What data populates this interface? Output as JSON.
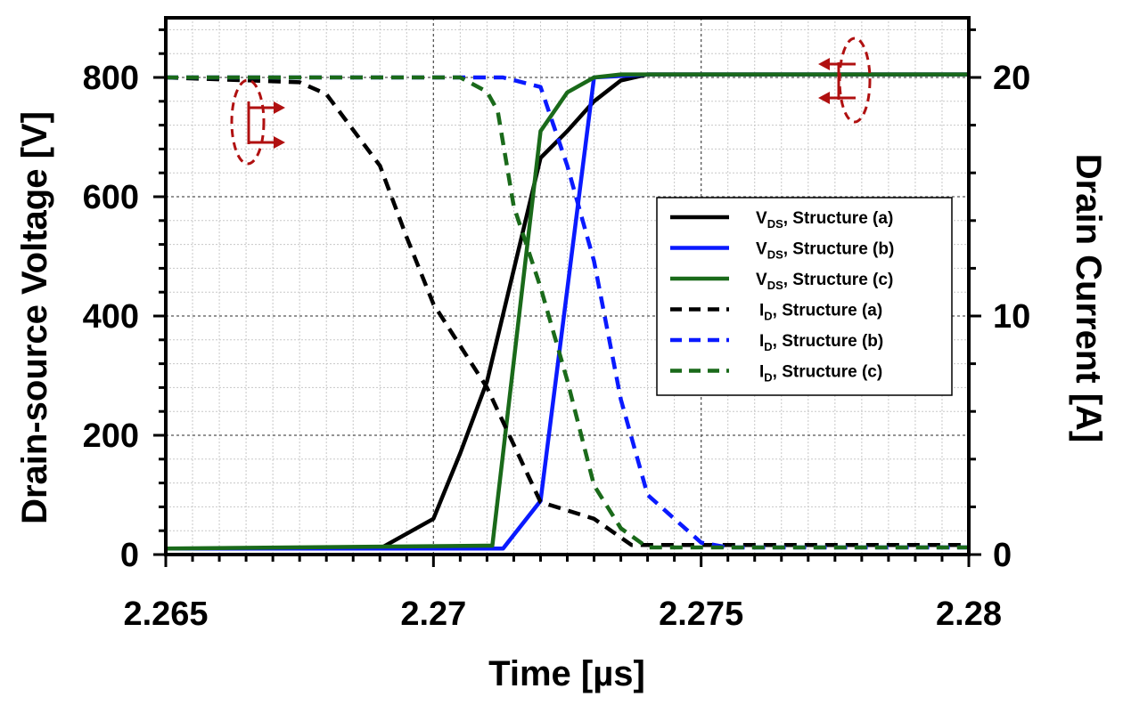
{
  "chart_data": {
    "type": "line",
    "xlabel": "Time [µs]",
    "ylabel_left": "Drain-source  Voltage [V]",
    "ylabel_right": "Drain  Current [A]",
    "xlim": [
      2.265,
      2.28
    ],
    "ylim_left": [
      0,
      900
    ],
    "ylim_right": [
      0,
      22.5
    ],
    "x_ticks": [
      "2.265",
      "2.27",
      "2.275",
      "2.28"
    ],
    "y_left_ticks": [
      "0",
      "200",
      "400",
      "600",
      "800"
    ],
    "y_right_ticks": [
      "0",
      "10",
      "20"
    ],
    "grid": true,
    "legend_position": "center-right",
    "series": [
      {
        "name": "V",
        "sub": "DS",
        "suffix": ", Structure (a)",
        "axis": "left",
        "color": "#000000",
        "dash": "solid",
        "x": [
          2.265,
          2.269,
          2.27,
          2.2705,
          2.271,
          2.272,
          2.2725,
          2.273,
          2.2735,
          2.274,
          2.28
        ],
        "y": [
          10,
          10,
          60,
          170,
          290,
          665,
          710,
          760,
          795,
          805,
          805
        ]
      },
      {
        "name": "V",
        "sub": "DS",
        "suffix": ", Structure (b)",
        "axis": "left",
        "color": "#0a1aff",
        "dash": "solid",
        "x": [
          2.265,
          2.2713,
          2.272,
          2.273,
          2.274,
          2.28
        ],
        "y": [
          10,
          10,
          90,
          800,
          805,
          805
        ]
      },
      {
        "name": "V",
        "sub": "DS",
        "suffix": ", Structure (c)",
        "axis": "left",
        "color": "#1a6a1a",
        "dash": "solid",
        "x": [
          2.265,
          2.271,
          2.2711,
          2.272,
          2.2725,
          2.273,
          2.2735,
          2.28
        ],
        "y": [
          10,
          15,
          15,
          710,
          775,
          800,
          805,
          805
        ]
      },
      {
        "name": "I",
        "sub": "D",
        "suffix": ", Structure (a)",
        "axis": "right",
        "color": "#000000",
        "dash": "dashed",
        "x": [
          2.265,
          2.2675,
          2.268,
          2.269,
          2.2695,
          2.27,
          2.271,
          2.272,
          2.273,
          2.2737,
          2.28
        ],
        "y": [
          20,
          19.8,
          19.3,
          16.3,
          13.3,
          10.5,
          7.0,
          2.2,
          1.5,
          0.4,
          0.4
        ]
      },
      {
        "name": "I",
        "sub": "D",
        "suffix": ", Structure (b)",
        "axis": "right",
        "color": "#0a1aff",
        "dash": "dashed",
        "x": [
          2.265,
          2.2713,
          2.272,
          2.2725,
          2.273,
          2.2735,
          2.274,
          2.2745,
          2.275,
          2.2755,
          2.28
        ],
        "y": [
          20,
          20,
          19.6,
          16.3,
          12.3,
          6.5,
          2.5,
          1.5,
          0.5,
          0.3,
          0.3
        ]
      },
      {
        "name": "I",
        "sub": "D",
        "suffix": ", Structure (c)",
        "axis": "right",
        "color": "#1a6a1a",
        "dash": "dashed",
        "x": [
          2.265,
          2.2705,
          2.271,
          2.2712,
          2.2715,
          2.272,
          2.2725,
          2.273,
          2.2735,
          2.274,
          2.28
        ],
        "y": [
          20,
          20,
          19.4,
          18.6,
          14.6,
          11.2,
          7.3,
          2.9,
          1.1,
          0.3,
          0.3
        ]
      }
    ]
  },
  "colors": {
    "annotation": "#b01010"
  }
}
